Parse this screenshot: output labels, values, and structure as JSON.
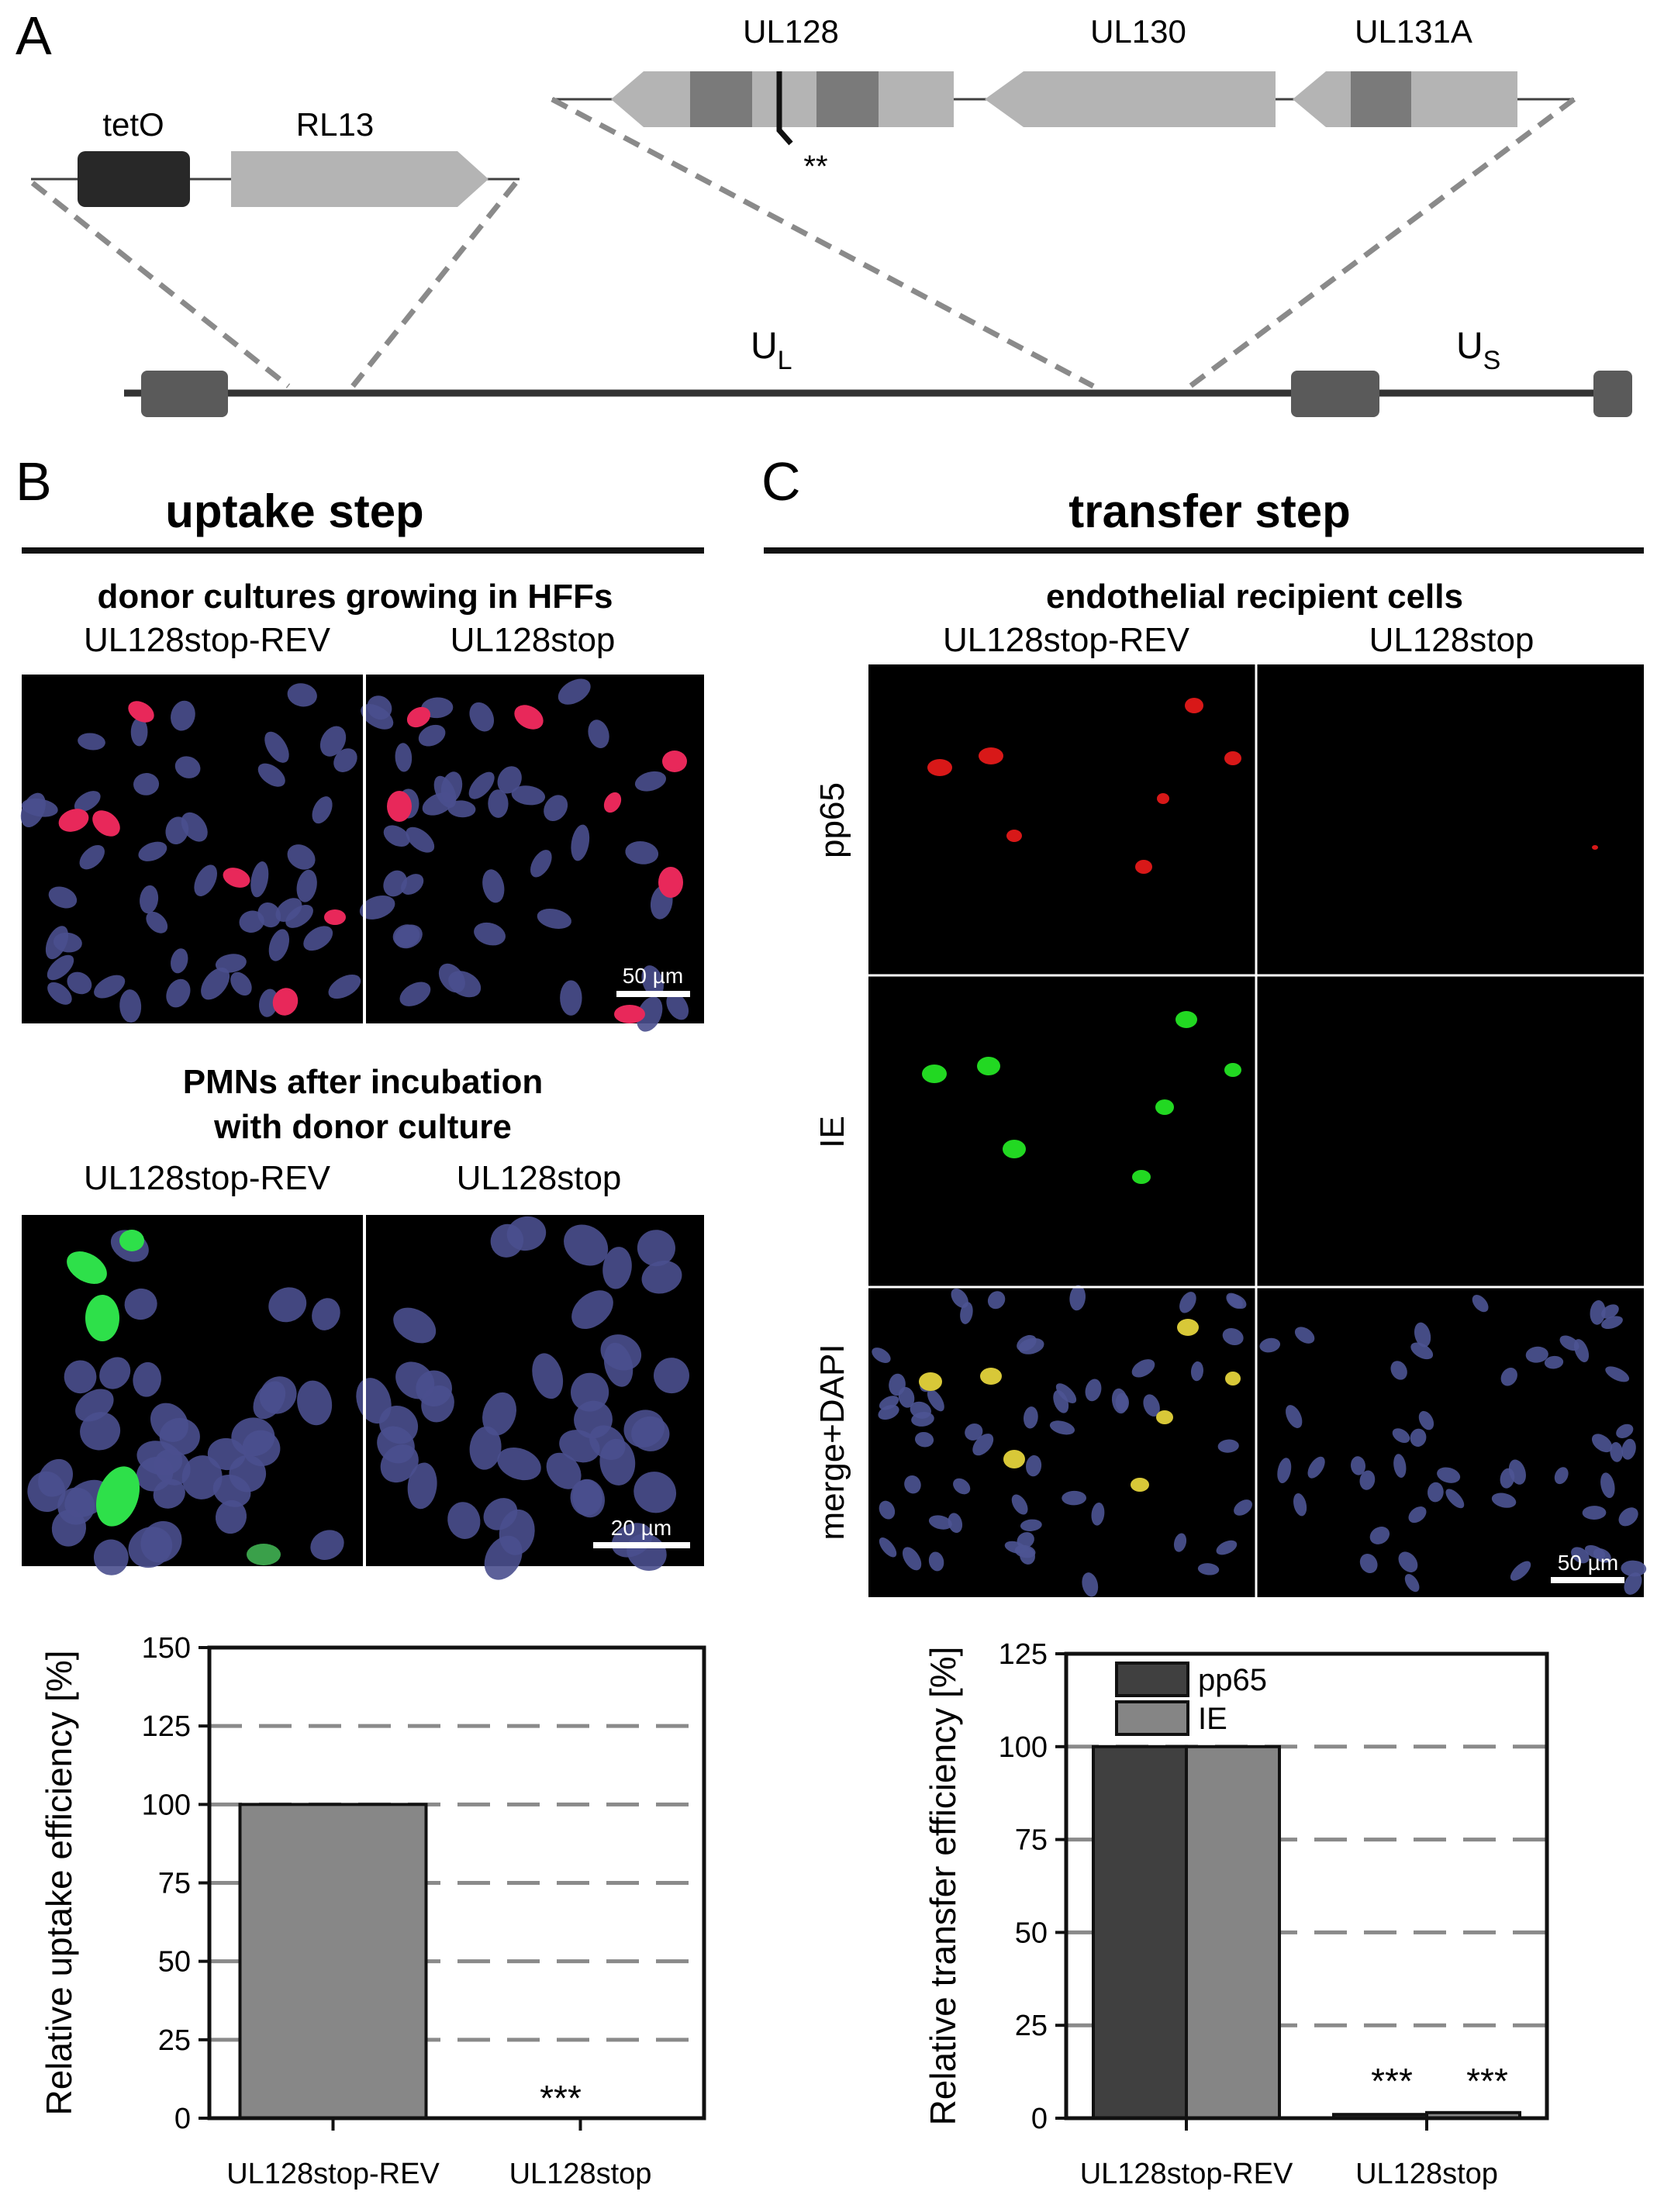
{
  "panel_a": {
    "letter": "A",
    "genes": {
      "ul128": "UL128",
      "ul130": "UL130",
      "ul131a": "UL131A",
      "teto": "tetO",
      "rl13": "RL13"
    },
    "mutation_marker": "**",
    "regions": {
      "ul_main": "U",
      "ul_sub": "L",
      "us_main": "U",
      "us_sub": "S"
    }
  },
  "panel_b": {
    "letter": "B",
    "title": "uptake step",
    "donor_heading": "donor cultures growing in HFFs",
    "pmn_heading_1": "PMNs after incubation",
    "pmn_heading_2": "with donor culture",
    "col_labels": [
      "UL128stop-REV",
      "UL128stop"
    ],
    "scale_bar_donor": "50 µm",
    "scale_bar_pmn": "20 µm",
    "colors": {
      "nucleus": "#4a4f8e",
      "infected": "#e8285a",
      "pmn_signal": "#2ee04a"
    }
  },
  "panel_c": {
    "letter": "C",
    "title": "transfer step",
    "heading": "endothelial recipient cells",
    "col_labels": [
      "UL128stop-REV",
      "UL128stop"
    ],
    "row_labels": [
      "pp65",
      "IE",
      "merge+DAPI"
    ],
    "scale_bar": "50 µm",
    "colors": {
      "pp65": "#d81818",
      "ie": "#22d822",
      "merge": "#d8c838",
      "nucleus": "#4d5494"
    }
  },
  "chart_data": [
    {
      "type": "bar",
      "ylabel": "Relative uptake efficiency [%]",
      "categories": [
        "UL128stop-REV",
        "UL128stop"
      ],
      "values": [
        100,
        0
      ],
      "ylim": [
        0,
        150
      ],
      "yticks": [
        "0",
        "25",
        "50",
        "75",
        "100",
        "125",
        "150"
      ],
      "significance": [
        "",
        "***"
      ],
      "grid": "dashed",
      "bar_color": "#878787"
    },
    {
      "type": "bar",
      "ylabel": "Relative transfer efficiency [%]",
      "categories": [
        "UL128stop-REV",
        "UL128stop"
      ],
      "series": [
        {
          "name": "pp65",
          "values": [
            100,
            1
          ],
          "color": "#404040"
        },
        {
          "name": "IE",
          "values": [
            100,
            1.5
          ],
          "color": "#858585"
        }
      ],
      "ylim": [
        0,
        125
      ],
      "yticks": [
        "0",
        "25",
        "50",
        "75",
        "100",
        "125"
      ],
      "significance": [
        "",
        "***",
        "***"
      ],
      "legend_position": "top-left",
      "grid": "dashed"
    }
  ]
}
